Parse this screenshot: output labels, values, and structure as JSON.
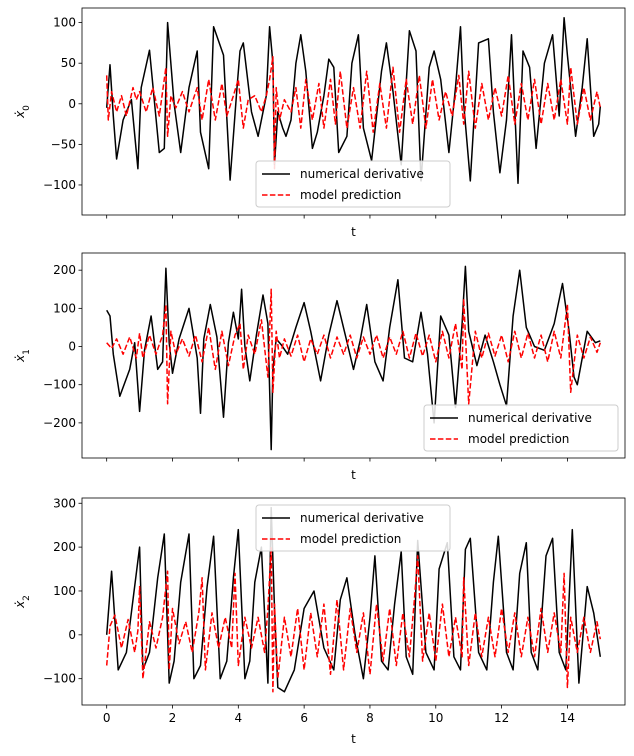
{
  "chart_data": [
    {
      "type": "line",
      "xlabel": "t",
      "ylabel": "ẋ",
      "ylabel_sub": "0",
      "xlim": [
        -0.75,
        15.75
      ],
      "ylim": [
        -137,
        118
      ],
      "yticks": [
        -100,
        -50,
        0,
        50,
        100
      ],
      "xticks": [
        0,
        2,
        4,
        6,
        8,
        10,
        12,
        14
      ],
      "show_xticklabels": false,
      "legend": "lower-center",
      "series": [
        {
          "name": "numerical derivative",
          "color": "#000000",
          "style": "solid",
          "x": [
            0,
            0.1,
            0.2,
            0.3,
            0.5,
            0.75,
            0.95,
            1.05,
            1.3,
            1.6,
            1.75,
            1.85,
            2.05,
            2.25,
            2.5,
            2.75,
            2.85,
            3.1,
            3.25,
            3.55,
            3.75,
            3.95,
            4.05,
            4.15,
            4.4,
            4.6,
            4.85,
            4.95,
            5.05,
            5.1,
            5.2,
            5.35,
            5.45,
            5.6,
            5.75,
            5.9,
            6.05,
            6.25,
            6.4,
            6.6,
            6.75,
            6.9,
            7.05,
            7.3,
            7.45,
            7.65,
            7.8,
            8.05,
            8.35,
            8.5,
            8.7,
            8.95,
            9.2,
            9.4,
            9.55,
            9.8,
            9.95,
            10.15,
            10.4,
            10.6,
            10.75,
            10.85,
            11.05,
            11.3,
            11.6,
            11.75,
            11.95,
            12.15,
            12.3,
            12.5,
            12.65,
            12.85,
            13.05,
            13.3,
            13.55,
            13.75,
            13.9,
            14.0,
            14.25,
            14.45,
            14.6,
            14.8,
            14.95,
            15.0
          ],
          "y": [
            -5,
            48,
            -15,
            -68,
            -20,
            5,
            -80,
            20,
            66,
            -60,
            -55,
            100,
            0,
            -60,
            20,
            65,
            -35,
            -80,
            95,
            60,
            -94,
            15,
            65,
            75,
            -10,
            -40,
            10,
            95,
            50,
            -75,
            -10,
            -30,
            -40,
            -20,
            50,
            85,
            40,
            -55,
            -35,
            10,
            55,
            45,
            -60,
            -40,
            50,
            85,
            -30,
            -70,
            40,
            75,
            15,
            -75,
            90,
            65,
            -95,
            45,
            65,
            30,
            -60,
            20,
            95,
            0,
            -95,
            75,
            80,
            -10,
            -85,
            -20,
            85,
            -98,
            65,
            45,
            -55,
            50,
            85,
            -15,
            106,
            60,
            -40,
            20,
            80,
            -40,
            -25,
            -3
          ]
        },
        {
          "name": "model prediction",
          "color": "#ff0000",
          "style": "dashed",
          "x": [
            0,
            0.05,
            0.15,
            0.3,
            0.45,
            0.6,
            0.8,
            0.9,
            1.0,
            1.2,
            1.4,
            1.6,
            1.8,
            1.85,
            1.95,
            2.1,
            2.3,
            2.5,
            2.75,
            2.9,
            3.1,
            3.3,
            3.5,
            3.65,
            3.85,
            4.0,
            4.15,
            4.3,
            4.5,
            4.7,
            4.85,
            4.95,
            5.05,
            5.1,
            5.15,
            5.25,
            5.4,
            5.6,
            5.75,
            5.9,
            6.05,
            6.25,
            6.45,
            6.6,
            6.8,
            6.95,
            7.1,
            7.3,
            7.5,
            7.7,
            7.9,
            8.1,
            8.3,
            8.5,
            8.7,
            8.9,
            9.1,
            9.3,
            9.5,
            9.7,
            9.9,
            10.1,
            10.3,
            10.5,
            10.7,
            10.85,
            11.0,
            11.2,
            11.4,
            11.6,
            11.8,
            12.0,
            12.2,
            12.4,
            12.6,
            12.8,
            13.0,
            13.2,
            13.4,
            13.6,
            13.8,
            14.0,
            14.1,
            14.3,
            14.5,
            14.7,
            14.9,
            15.0
          ],
          "y": [
            35,
            -20,
            15,
            -10,
            10,
            -15,
            20,
            5,
            15,
            -10,
            20,
            -15,
            45,
            -40,
            10,
            -5,
            15,
            -10,
            20,
            -20,
            30,
            -20,
            25,
            -15,
            10,
            30,
            -30,
            5,
            10,
            -10,
            10,
            30,
            58,
            -80,
            20,
            -20,
            5,
            -10,
            20,
            -30,
            30,
            -20,
            25,
            -30,
            30,
            -25,
            40,
            -30,
            20,
            -30,
            40,
            -35,
            25,
            -30,
            45,
            -35,
            30,
            -25,
            35,
            -30,
            30,
            -20,
            15,
            -15,
            35,
            -25,
            40,
            -30,
            25,
            -20,
            20,
            -15,
            35,
            -25,
            25,
            -20,
            30,
            -25,
            25,
            -20,
            30,
            -25,
            45,
            -25,
            20,
            -20,
            15,
            -5
          ]
        }
      ]
    },
    {
      "type": "line",
      "xlabel": "t",
      "ylabel": "ẋ",
      "ylabel_sub": "1",
      "xlim": [
        -0.75,
        15.75
      ],
      "ylim": [
        -292,
        245
      ],
      "yticks": [
        -200,
        -100,
        0,
        100,
        200
      ],
      "xticks": [
        0,
        2,
        4,
        6,
        8,
        10,
        12,
        14
      ],
      "show_xticklabels": false,
      "legend": "lower-right",
      "series": [
        {
          "name": "numerical derivative",
          "color": "#000000",
          "style": "solid",
          "x": [
            0,
            0.1,
            0.2,
            0.4,
            0.7,
            0.85,
            1.0,
            1.15,
            1.35,
            1.55,
            1.7,
            1.8,
            1.9,
            2.0,
            2.2,
            2.5,
            2.75,
            2.85,
            2.95,
            3.15,
            3.35,
            3.55,
            3.7,
            3.85,
            4.0,
            4.1,
            4.2,
            4.35,
            4.55,
            4.75,
            4.9,
            5.0,
            5.05,
            5.15,
            5.3,
            5.5,
            5.75,
            6.0,
            6.2,
            6.5,
            6.75,
            7.0,
            7.25,
            7.5,
            7.7,
            7.9,
            8.15,
            8.4,
            8.6,
            8.85,
            9.05,
            9.3,
            9.55,
            9.75,
            9.95,
            10.15,
            10.4,
            10.6,
            10.8,
            10.9,
            11.0,
            11.25,
            11.5,
            11.75,
            11.95,
            12.15,
            12.35,
            12.55,
            12.75,
            13.0,
            13.3,
            13.6,
            13.85,
            14.05,
            14.2,
            14.3,
            14.6,
            14.85,
            15.0
          ],
          "y": [
            95,
            80,
            -20,
            -130,
            -60,
            10,
            -170,
            -10,
            80,
            -60,
            -40,
            205,
            10,
            -70,
            20,
            100,
            -30,
            -175,
            20,
            110,
            25,
            -185,
            10,
            90,
            20,
            150,
            0,
            -90,
            30,
            135,
            60,
            -270,
            -60,
            20,
            5,
            -20,
            50,
            115,
            40,
            -90,
            30,
            120,
            30,
            -60,
            15,
            110,
            -40,
            -90,
            50,
            175,
            -30,
            -40,
            90,
            -20,
            -200,
            80,
            30,
            -160,
            60,
            210,
            40,
            -50,
            30,
            -40,
            -100,
            -155,
            80,
            200,
            50,
            0,
            -10,
            60,
            165,
            40,
            -80,
            -100,
            40,
            10,
            15
          ]
        },
        {
          "name": "model prediction",
          "color": "#ff0000",
          "style": "dashed",
          "x": [
            0,
            0.15,
            0.3,
            0.5,
            0.7,
            0.9,
            1.0,
            1.1,
            1.3,
            1.5,
            1.7,
            1.8,
            1.85,
            1.95,
            2.1,
            2.3,
            2.5,
            2.7,
            2.9,
            3.1,
            3.3,
            3.5,
            3.7,
            3.9,
            4.05,
            4.15,
            4.3,
            4.5,
            4.7,
            4.9,
            5.0,
            5.05,
            5.15,
            5.25,
            5.4,
            5.6,
            5.8,
            6.0,
            6.2,
            6.4,
            6.6,
            6.8,
            7.0,
            7.2,
            7.4,
            7.6,
            7.8,
            8.0,
            8.2,
            8.4,
            8.6,
            8.8,
            9.0,
            9.2,
            9.4,
            9.6,
            9.8,
            10.0,
            10.2,
            10.4,
            10.6,
            10.8,
            10.85,
            11.0,
            11.2,
            11.4,
            11.6,
            11.8,
            12.0,
            12.2,
            12.4,
            12.6,
            12.8,
            13.0,
            13.2,
            13.4,
            13.6,
            13.8,
            14.0,
            14.1,
            14.3,
            14.5,
            14.7,
            14.9,
            15.0
          ],
          "y": [
            10,
            -5,
            20,
            -20,
            25,
            -30,
            35,
            -30,
            30,
            -20,
            30,
            110,
            -150,
            40,
            -20,
            20,
            -25,
            30,
            -40,
            50,
            -60,
            40,
            -50,
            30,
            60,
            -60,
            30,
            -20,
            70,
            -80,
            150,
            -120,
            40,
            -30,
            20,
            -25,
            30,
            -40,
            20,
            -20,
            30,
            -30,
            25,
            -20,
            30,
            -30,
            25,
            -20,
            30,
            -30,
            25,
            -20,
            40,
            -30,
            35,
            -25,
            30,
            -40,
            40,
            -30,
            60,
            -60,
            125,
            -150,
            40,
            -30,
            35,
            -25,
            30,
            -40,
            40,
            -30,
            35,
            -30,
            30,
            -40,
            40,
            -30,
            110,
            -120,
            30,
            -30,
            25,
            -15,
            10
          ]
        }
      ]
    },
    {
      "type": "line",
      "xlabel": "t",
      "ylabel": "ẋ",
      "ylabel_sub": "2",
      "xlim": [
        -0.75,
        15.75
      ],
      "ylim": [
        -160,
        312
      ],
      "yticks": [
        -100,
        0,
        100,
        200,
        300
      ],
      "xticks": [
        0,
        2,
        4,
        6,
        8,
        10,
        12,
        14
      ],
      "show_xticklabels": true,
      "legend": "upper-center",
      "series": [
        {
          "name": "numerical derivative",
          "color": "#000000",
          "style": "solid",
          "x": [
            0,
            0.15,
            0.35,
            0.6,
            0.8,
            1.0,
            1.1,
            1.3,
            1.55,
            1.75,
            1.9,
            2.05,
            2.25,
            2.5,
            2.65,
            2.85,
            3.05,
            3.25,
            3.45,
            3.65,
            3.85,
            4.0,
            4.2,
            4.35,
            4.5,
            4.7,
            4.9,
            5.0,
            5.1,
            5.2,
            5.4,
            5.7,
            6.0,
            6.3,
            6.6,
            6.9,
            7.1,
            7.3,
            7.55,
            7.8,
            8.0,
            8.15,
            8.35,
            8.55,
            8.75,
            8.95,
            9.1,
            9.3,
            9.45,
            9.7,
            9.95,
            10.1,
            10.35,
            10.55,
            10.75,
            10.9,
            11.05,
            11.3,
            11.55,
            11.75,
            11.9,
            12.15,
            12.35,
            12.55,
            12.75,
            12.9,
            13.1,
            13.35,
            13.55,
            13.75,
            13.95,
            14.15,
            14.35,
            14.6,
            14.8,
            15.0
          ],
          "y": [
            0,
            145,
            -80,
            -40,
            80,
            200,
            -80,
            -40,
            130,
            230,
            -110,
            -60,
            120,
            230,
            -100,
            -70,
            110,
            225,
            -100,
            -60,
            130,
            240,
            -100,
            -60,
            120,
            200,
            -110,
            290,
            60,
            -120,
            -130,
            -80,
            60,
            100,
            -30,
            -80,
            80,
            130,
            0,
            -100,
            40,
            180,
            -60,
            -80,
            70,
            190,
            -50,
            -90,
            215,
            -40,
            -80,
            150,
            210,
            -50,
            -80,
            195,
            220,
            -40,
            -80,
            120,
            225,
            -40,
            -80,
            140,
            210,
            -40,
            -80,
            180,
            220,
            -40,
            -80,
            240,
            -110,
            110,
            50,
            -50
          ]
        },
        {
          "name": "model prediction",
          "color": "#ff0000",
          "style": "dashed",
          "x": [
            0,
            0.1,
            0.25,
            0.45,
            0.65,
            0.85,
            0.95,
            1.0,
            1.1,
            1.3,
            1.5,
            1.7,
            1.85,
            1.9,
            2.0,
            2.2,
            2.4,
            2.6,
            2.8,
            2.9,
            3.0,
            3.2,
            3.4,
            3.6,
            3.8,
            3.9,
            4.0,
            4.2,
            4.4,
            4.6,
            4.8,
            4.9,
            5.0,
            5.05,
            5.1,
            5.2,
            5.4,
            5.6,
            5.8,
            6.0,
            6.2,
            6.4,
            6.6,
            6.8,
            7.0,
            7.2,
            7.4,
            7.6,
            7.8,
            8.0,
            8.2,
            8.4,
            8.6,
            8.8,
            9.0,
            9.2,
            9.35,
            9.45,
            9.6,
            9.8,
            10.0,
            10.2,
            10.4,
            10.6,
            10.8,
            10.85,
            11.0,
            11.2,
            11.4,
            11.6,
            11.8,
            12.0,
            12.2,
            12.4,
            12.6,
            12.8,
            13.0,
            13.2,
            13.4,
            13.6,
            13.8,
            13.9,
            14.0,
            14.1,
            14.3,
            14.5,
            14.7,
            14.9,
            15.0
          ],
          "y": [
            -70,
            20,
            45,
            -30,
            35,
            -40,
            10,
            110,
            -100,
            30,
            -30,
            40,
            145,
            -80,
            60,
            -20,
            30,
            -40,
            50,
            130,
            -80,
            50,
            -30,
            40,
            -30,
            140,
            -70,
            40,
            -30,
            40,
            -40,
            60,
            200,
            -130,
            70,
            -100,
            40,
            -50,
            60,
            -80,
            50,
            -50,
            70,
            -90,
            80,
            -80,
            60,
            -40,
            50,
            -90,
            70,
            -60,
            60,
            -70,
            50,
            -50,
            80,
            180,
            -60,
            50,
            -60,
            70,
            -50,
            40,
            -50,
            130,
            -70,
            50,
            -50,
            40,
            -50,
            60,
            -40,
            50,
            -50,
            40,
            -50,
            60,
            -40,
            50,
            -40,
            140,
            -120,
            40,
            -40,
            40,
            -40,
            30,
            -10
          ]
        }
      ]
    }
  ]
}
